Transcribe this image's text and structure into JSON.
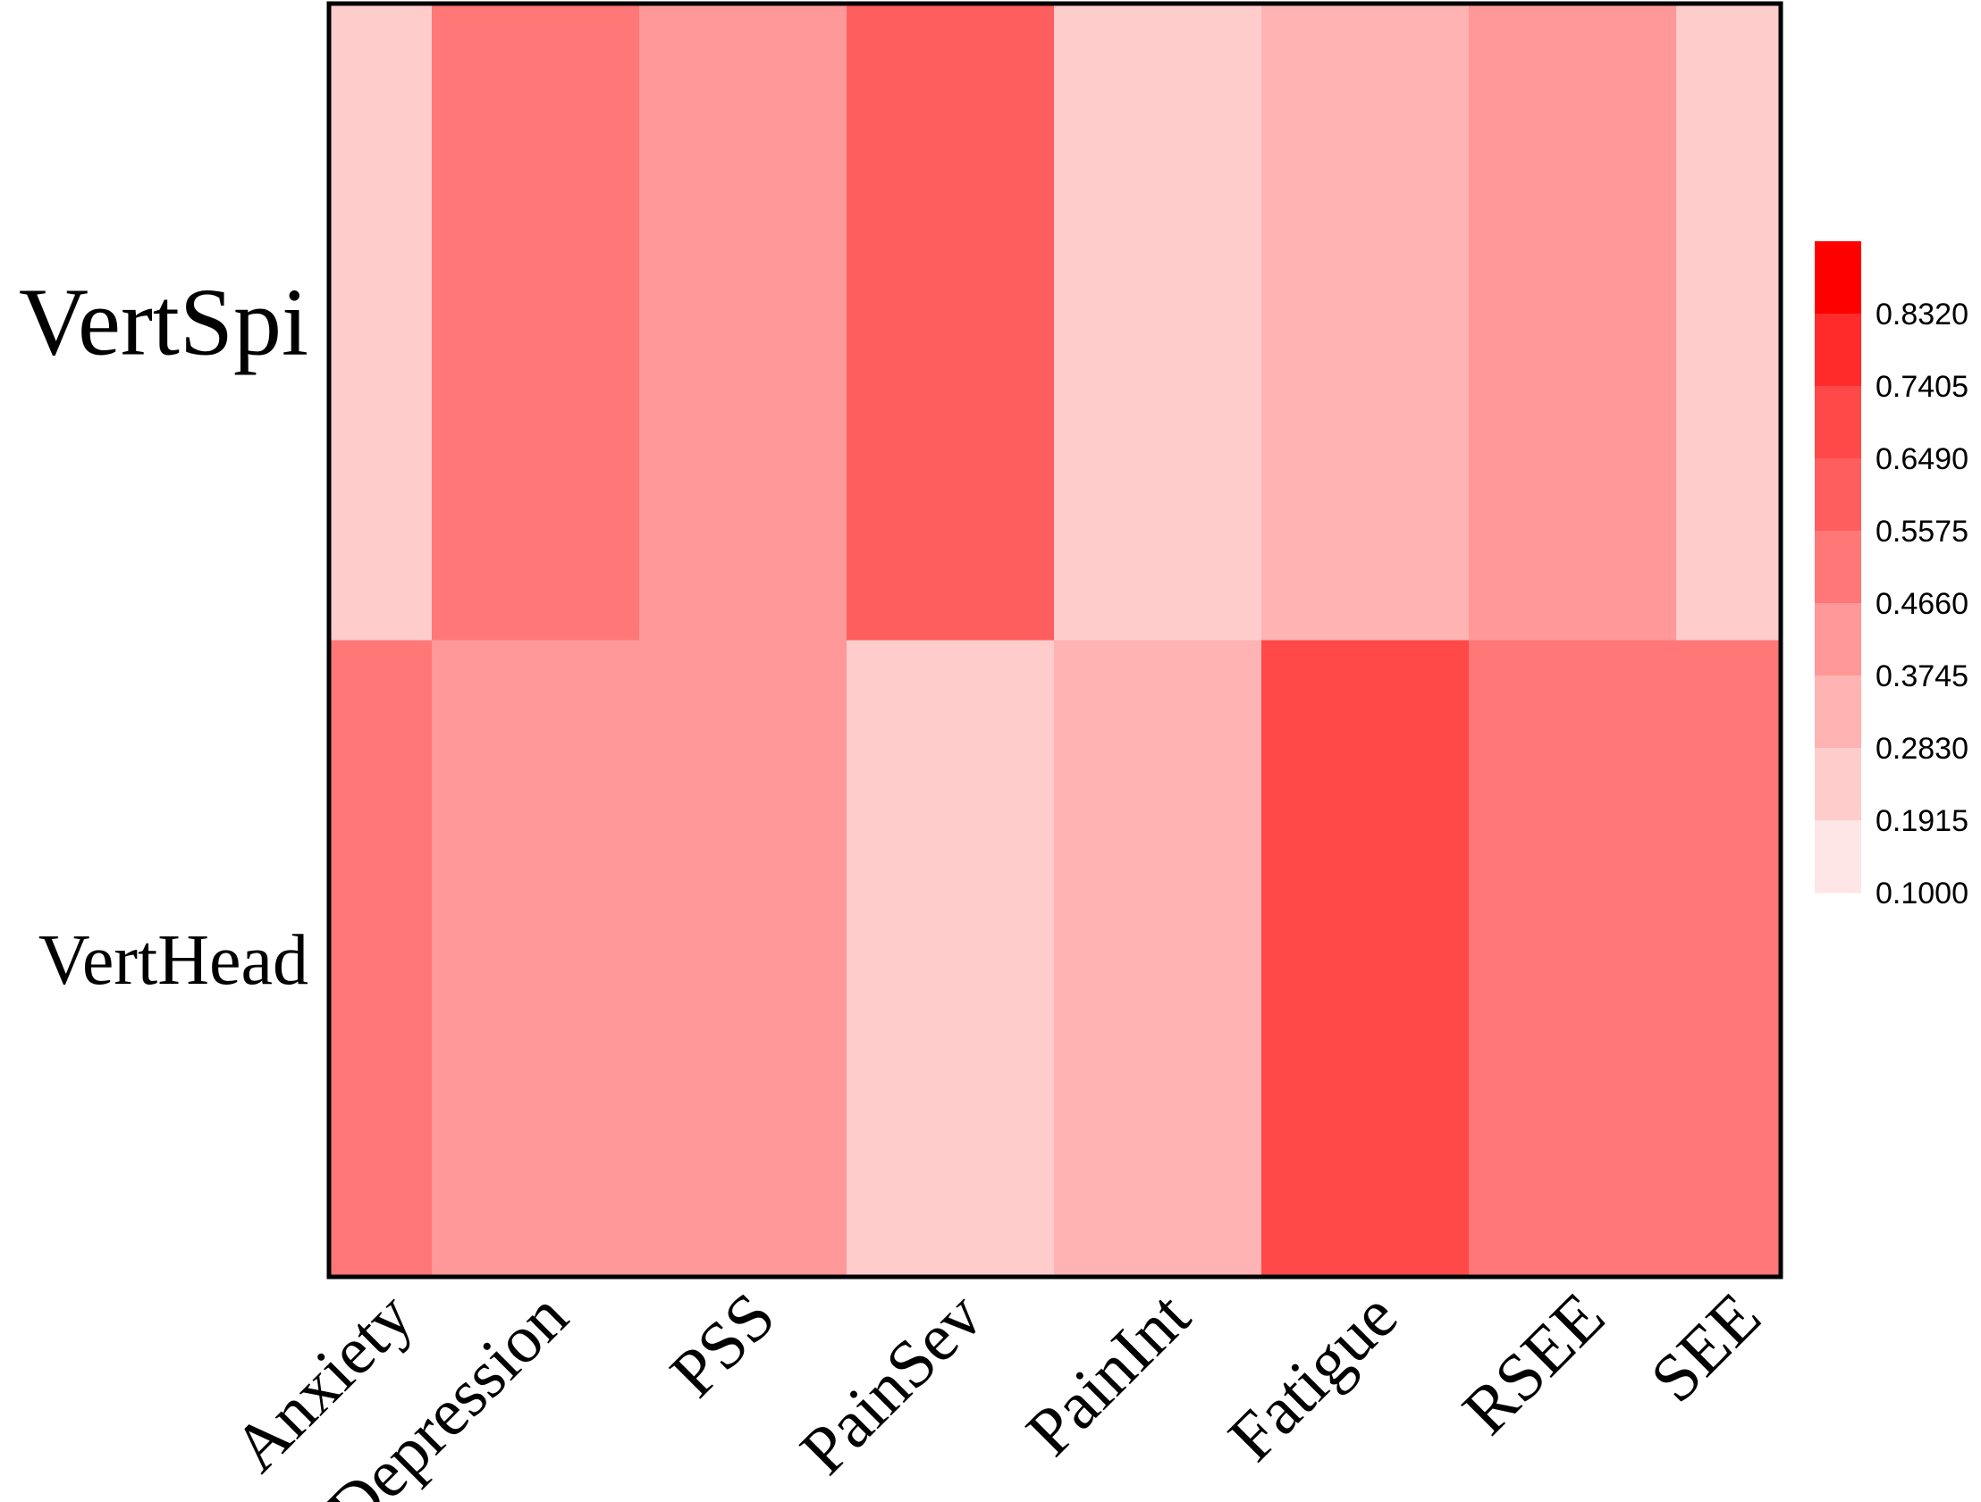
{
  "chart_data": {
    "type": "heatmap",
    "title": "",
    "xlabel": "",
    "ylabel": "",
    "rows": [
      "VertSpi",
      "VertHead"
    ],
    "columns": [
      "Anxiety",
      "Depression",
      "PSS",
      "PainSev",
      "PainInt",
      "Fatigue",
      "RSEE",
      "SEE"
    ],
    "values": [
      [
        0.24,
        0.51,
        0.42,
        0.6,
        0.24,
        0.33,
        0.42,
        0.24
      ],
      [
        0.51,
        0.42,
        0.42,
        0.24,
        0.33,
        0.7,
        0.51,
        0.51
      ]
    ],
    "colorbar": {
      "range": [
        0.1,
        0.9235
      ],
      "tick_labels": [
        "0.8320",
        "0.7405",
        "0.6490",
        "0.5575",
        "0.4660",
        "0.3745",
        "0.2830",
        "0.1915",
        "0.1000"
      ],
      "bins": [
        {
          "min": 0.832,
          "max": 0.9235,
          "color": "#ff0000"
        },
        {
          "min": 0.7405,
          "max": 0.832,
          "color": "#ff2b2b"
        },
        {
          "min": 0.649,
          "max": 0.7405,
          "color": "#ff4949"
        },
        {
          "min": 0.5575,
          "max": 0.649,
          "color": "#ff5e5e"
        },
        {
          "min": 0.466,
          "max": 0.5575,
          "color": "#ff7777"
        },
        {
          "min": 0.3745,
          "max": 0.466,
          "color": "#ff9898"
        },
        {
          "min": 0.283,
          "max": 0.3745,
          "color": "#ffb3b3"
        },
        {
          "min": 0.1915,
          "max": 0.283,
          "color": "#ffcccc"
        },
        {
          "min": 0.1,
          "max": 0.1915,
          "color": "#ffe6e6"
        }
      ]
    }
  }
}
